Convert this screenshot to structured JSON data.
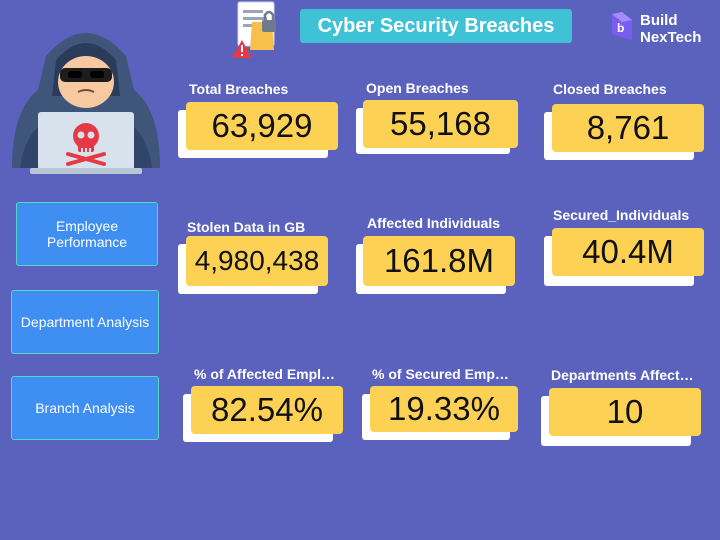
{
  "header": {
    "title": "Cyber Security Breaches",
    "logo_line1": "Build",
    "logo_line2": "NexTech"
  },
  "nav": {
    "employee_performance": "Employee Performance",
    "department_analysis": "Department Analysis",
    "branch_analysis": "Branch Analysis"
  },
  "kpis": {
    "total_breaches": {
      "label": "Total Breaches",
      "value": "63,929"
    },
    "open_breaches": {
      "label": "Open Breaches",
      "value": "55,168"
    },
    "closed_breaches": {
      "label": "Closed Breaches",
      "value": "8,761"
    },
    "stolen_data": {
      "label": "Stolen Data in GB",
      "value": "4,980,438"
    },
    "affected_individuals": {
      "label": "Affected Individuals",
      "value": "161.8M"
    },
    "secured_individuals": {
      "label": "Secured_Individuals",
      "value": "40.4M"
    },
    "pct_affected": {
      "label": "% of Affected Empl…",
      "value": "82.54%"
    },
    "pct_secured": {
      "label": "% of Secured Emp…",
      "value": "19.33%"
    },
    "departments_affected": {
      "label": "Departments Affect…",
      "value": "10"
    }
  },
  "colors": {
    "background": "#5b62be",
    "title_bg": "#3fc2d6",
    "nav_bg": "#3f8ff2",
    "kpi_bg": "#fdd254"
  },
  "icons": {
    "hacker": "hooded-hacker-icon",
    "document": "document-lock-warning-icon",
    "logo": "buildnextech-logo-icon"
  }
}
